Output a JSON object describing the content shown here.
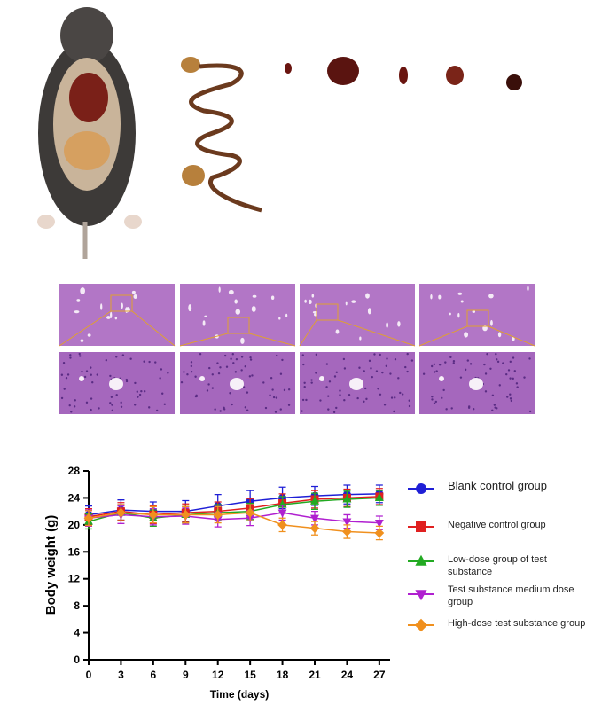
{
  "chart_data": {
    "type": "line",
    "x_label": "Time (days)",
    "y_label": "Body weight (g)",
    "x": [
      0,
      3,
      6,
      9,
      12,
      15,
      18,
      21,
      24,
      27
    ],
    "xlim": [
      0,
      28
    ],
    "xticks": [
      0,
      3,
      6,
      9,
      12,
      15,
      18,
      21,
      24,
      27
    ],
    "ylim": [
      0,
      28
    ],
    "yticks": [
      0,
      4,
      8,
      12,
      16,
      20,
      24,
      28
    ],
    "series": [
      {
        "name": "Blank control group",
        "color": "#1f1fd6",
        "marker": "circle",
        "values": [
          21.5,
          22.2,
          22.0,
          22.0,
          22.8,
          23.5,
          24.0,
          24.3,
          24.5,
          24.6
        ],
        "errors": [
          1.3,
          1.5,
          1.4,
          1.6,
          1.7,
          1.6,
          1.6,
          1.4,
          1.4,
          1.3
        ]
      },
      {
        "name": "Negative control group",
        "color": "#e02020",
        "marker": "square",
        "values": [
          21.2,
          22.0,
          21.5,
          21.8,
          22.0,
          22.5,
          23.2,
          23.8,
          24.0,
          24.2
        ],
        "errors": [
          1.2,
          1.3,
          1.3,
          1.3,
          1.4,
          1.4,
          1.4,
          1.3,
          1.3,
          1.2
        ]
      },
      {
        "name": "Low-dose group of test substance",
        "color": "#22aa22",
        "marker": "triangle-up",
        "values": [
          20.5,
          21.8,
          21.0,
          21.5,
          21.8,
          22.0,
          23.0,
          23.5,
          23.8,
          24.0
        ],
        "errors": [
          1.1,
          1.2,
          1.2,
          1.2,
          1.2,
          1.2,
          1.2,
          1.2,
          1.2,
          1.1
        ]
      },
      {
        "name": "Test substance medium dose group",
        "color": "#b020d0",
        "marker": "triangle-down",
        "values": [
          21.0,
          21.5,
          21.2,
          21.3,
          20.8,
          21.0,
          21.8,
          21.0,
          20.5,
          20.3
        ],
        "errors": [
          1.2,
          1.3,
          1.2,
          1.2,
          1.1,
          1.1,
          1.1,
          1.0,
          1.0,
          1.0
        ]
      },
      {
        "name": "High-dose test substance group",
        "color": "#f0901e",
        "marker": "diamond",
        "values": [
          21.0,
          21.8,
          21.5,
          21.5,
          21.5,
          21.8,
          20.0,
          19.5,
          19.0,
          18.8
        ],
        "errors": [
          1.1,
          1.2,
          1.2,
          1.2,
          1.2,
          1.2,
          1.0,
          1.0,
          1.0,
          1.0
        ]
      }
    ]
  }
}
